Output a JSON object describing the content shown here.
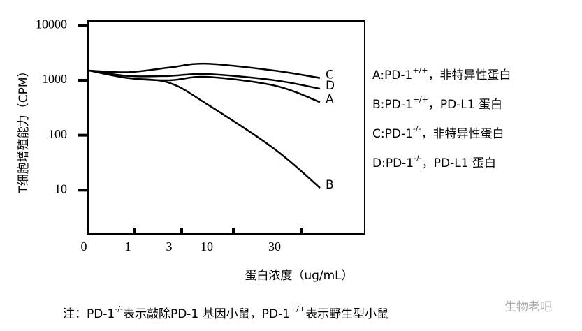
{
  "chart_data": {
    "type": "line",
    "y_label": "T细胞增殖能力（CPM）",
    "x_label": "蛋白浓度（ug/mL）",
    "categories": [
      "0",
      "1",
      "3",
      "10",
      "30",
      null
    ],
    "log_y": true,
    "ylim": [
      1.6,
      12000
    ],
    "yticks": [
      10,
      100,
      1000,
      10000
    ],
    "color": "#000000",
    "series": [
      {
        "name": "C",
        "values": [
          1500,
          1400,
          1700,
          2000,
          1500,
          1100
        ]
      },
      {
        "name": "D",
        "values": [
          1500,
          1200,
          1200,
          1300,
          1000,
          700
        ]
      },
      {
        "name": "A",
        "values": [
          1500,
          1100,
          1000,
          1150,
          800,
          400
        ]
      },
      {
        "name": "B",
        "values": [
          1500,
          1100,
          900,
          370,
          56,
          11
        ]
      }
    ],
    "legend": [
      {
        "key": "A:PD-1",
        "sup": "+/+",
        "text": "，非特异性蛋白"
      },
      {
        "key": "B:PD-1",
        "sup": "+/+",
        "text": "，PD-L1 蛋白"
      },
      {
        "key": "C:PD-1",
        "sup": "-/-",
        "text": "，非特异性蛋白"
      },
      {
        "key": "D:PD-1",
        "sup": "-/-",
        "text": "，PD-L1 蛋白"
      }
    ],
    "note": {
      "a": "注：PD-1",
      "a_sup": "-/-",
      "b": "表示敲除PD-1 基因小鼠，PD-1",
      "b_sup": "+/+",
      "c": "表示野生型小鼠"
    },
    "watermark": "生物老吧"
  }
}
